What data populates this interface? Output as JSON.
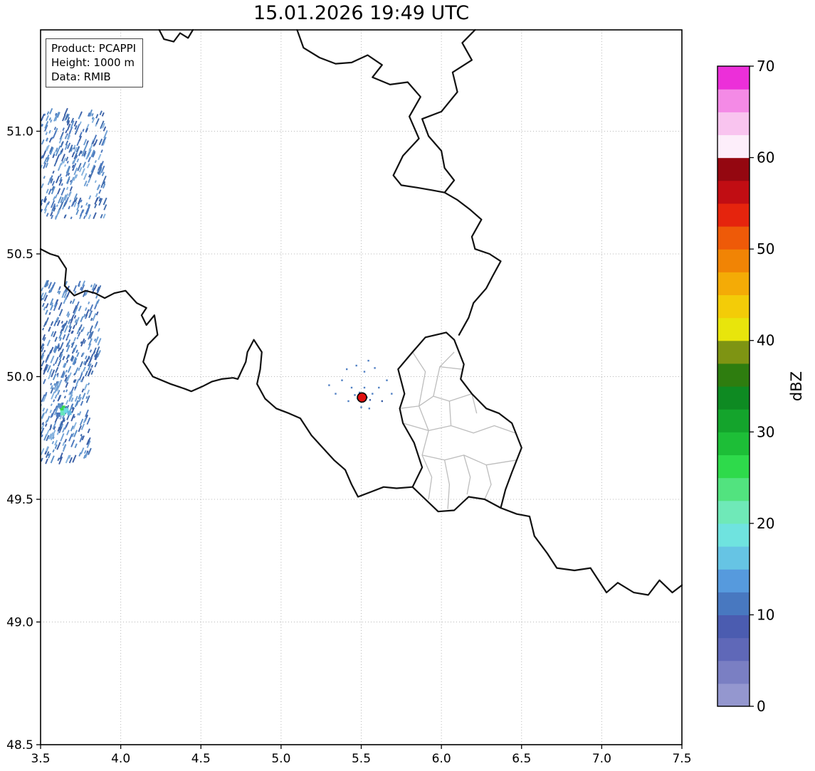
{
  "chart_data": {
    "type": "heatmap",
    "subtype": "weather-radar-map",
    "title": "15.01.2026 19:49 UTC",
    "xlabel": "",
    "ylabel": "",
    "grid": true,
    "grid_style": "dotted",
    "x_range": [
      3.5,
      7.5
    ],
    "y_range": [
      48.5,
      51.413
    ],
    "x_ticks": [
      3.5,
      4.0,
      4.5,
      5.0,
      5.5,
      6.0,
      6.5,
      7.0,
      7.5
    ],
    "x_tick_labels": [
      "3.5",
      "4.0",
      "4.5",
      "5.0",
      "5.5",
      "6.0",
      "6.5",
      "7.0",
      "7.5"
    ],
    "y_ticks": [
      48.5,
      49.0,
      49.5,
      50.0,
      50.5,
      51.0
    ],
    "y_tick_labels": [
      "48.5",
      "49.0",
      "49.5",
      "50.0",
      "50.5",
      "51.0"
    ],
    "annotation_lines": [
      "Product: PCAPPI",
      "Height: 1000 m",
      "Data: RMIB"
    ],
    "colorbar": {
      "label": "dBZ",
      "min": 0,
      "max": 70,
      "ticks": [
        0,
        10,
        20,
        30,
        40,
        50,
        60,
        70
      ],
      "tick_labels": [
        "0",
        "10",
        "20",
        "30",
        "40",
        "50",
        "60",
        "70"
      ],
      "colors_bottom_to_top": [
        "#9497cf",
        "#7a7fc3",
        "#5f68b8",
        "#4b5cb0",
        "#4878c0",
        "#569add",
        "#66c4e4",
        "#6fe3df",
        "#6fe9b8",
        "#52e37f",
        "#2eda4b",
        "#1dbe37",
        "#14a42c",
        "#0e8a22",
        "#2e7d0f",
        "#7e9413",
        "#e8e50c",
        "#f3cc08",
        "#f4ab06",
        "#f18405",
        "#ee5a08",
        "#e5240d",
        "#c10d13",
        "#940710",
        "#fdeefa",
        "#f9c4ef",
        "#f48ae6",
        "#ec2fd9"
      ]
    },
    "radar_site_marker": {
      "lon": 5.505,
      "lat": 49.915,
      "color": "#e01010",
      "edge_color": "#000000"
    },
    "speck_color": "#4f7fc3",
    "echo_clusters": [
      {
        "seed": 11,
        "count": 300,
        "lon_min": 3.5,
        "lon_max": 3.9,
        "lat_min": 50.64,
        "lat_max": 51.07,
        "palette": [
          "#4c78bd",
          "#5b8fc9",
          "#416dae",
          "#6f9fd4",
          "#3b5fa6",
          "#86b3de"
        ]
      },
      {
        "seed": 23,
        "count": 240,
        "lon_min": 3.5,
        "lon_max": 3.86,
        "lat_min": 50.0,
        "lat_max": 50.37,
        "palette": [
          "#4c78bd",
          "#5b8fc9",
          "#416dae",
          "#6f9fd4",
          "#3b5fa6"
        ]
      },
      {
        "seed": 37,
        "count": 190,
        "lon_min": 3.5,
        "lon_max": 3.8,
        "lat_min": 49.64,
        "lat_max": 50.0,
        "palette": [
          "#4c78bd",
          "#5b8fc9",
          "#416dae",
          "#6f9fd4",
          "#3b5fa6",
          "#86b3de"
        ]
      }
    ],
    "echo_cells": [
      {
        "lon": 3.638,
        "lat": 49.872,
        "color": "#35d94e",
        "s": 7
      },
      {
        "lon": 3.638,
        "lat": 49.852,
        "color": "#66e6bc",
        "s": 7
      },
      {
        "lon": 3.66,
        "lat": 49.862,
        "color": "#6fd9e6",
        "s": 7
      },
      {
        "lon": 3.62,
        "lat": 49.882,
        "color": "#5b8fc9",
        "s": 6
      },
      {
        "lon": 3.68,
        "lat": 49.852,
        "color": "#63b7e0",
        "s": 6
      },
      {
        "lon": 3.61,
        "lat": 49.845,
        "color": "#4c78bd",
        "s": 6
      }
    ],
    "echo_specks": [
      {
        "lon": 5.46,
        "lat": 49.925
      },
      {
        "lon": 5.475,
        "lat": 49.91,
        "c": "#7adce2"
      },
      {
        "lon": 5.49,
        "lat": 49.935
      },
      {
        "lon": 5.535,
        "lat": 49.915
      },
      {
        "lon": 5.555,
        "lat": 49.905,
        "c": "#3b5fa6"
      },
      {
        "lon": 5.57,
        "lat": 49.93
      },
      {
        "lon": 5.52,
        "lat": 49.955
      },
      {
        "lon": 5.44,
        "lat": 49.955
      },
      {
        "lon": 5.42,
        "lat": 49.9
      },
      {
        "lon": 5.5,
        "lat": 49.875
      },
      {
        "lon": 5.55,
        "lat": 49.87
      },
      {
        "lon": 5.61,
        "lat": 49.955
      },
      {
        "lon": 5.63,
        "lat": 49.9,
        "c": "#3b5fa6"
      },
      {
        "lon": 5.38,
        "lat": 49.985
      },
      {
        "lon": 5.52,
        "lat": 50.02
      },
      {
        "lon": 5.585,
        "lat": 50.035
      },
      {
        "lon": 5.47,
        "lat": 50.045
      },
      {
        "lon": 5.34,
        "lat": 49.93
      },
      {
        "lon": 5.3,
        "lat": 49.965
      },
      {
        "lon": 5.66,
        "lat": 49.985
      },
      {
        "lon": 5.69,
        "lat": 49.93
      },
      {
        "lon": 5.545,
        "lat": 50.065
      },
      {
        "lon": 5.41,
        "lat": 50.03
      }
    ],
    "borders": {
      "countries": [
        [
          [
            4.24,
            51.413
          ],
          [
            4.27,
            51.375
          ],
          [
            4.33,
            51.365
          ],
          [
            4.37,
            51.4
          ],
          [
            4.42,
            51.38
          ],
          [
            4.45,
            51.413
          ]
        ],
        [
          [
            5.1,
            51.413
          ],
          [
            5.14,
            51.34
          ],
          [
            5.24,
            51.3
          ],
          [
            5.34,
            51.275
          ],
          [
            5.44,
            51.28
          ],
          [
            5.54,
            51.31
          ],
          [
            5.63,
            51.27
          ],
          [
            5.57,
            51.22
          ],
          [
            5.68,
            51.19
          ],
          [
            5.79,
            51.2
          ],
          [
            5.87,
            51.14
          ],
          [
            5.8,
            51.06
          ],
          [
            5.86,
            50.97
          ],
          [
            5.76,
            50.9
          ],
          [
            5.7,
            50.82
          ],
          [
            5.75,
            50.78
          ],
          [
            5.85,
            50.77
          ],
          [
            5.94,
            50.76
          ],
          [
            6.02,
            50.75
          ]
        ],
        [
          [
            6.21,
            51.413
          ],
          [
            6.13,
            51.36
          ],
          [
            6.19,
            51.29
          ],
          [
            6.07,
            51.24
          ],
          [
            6.1,
            51.16
          ],
          [
            6.0,
            51.08
          ],
          [
            5.88,
            51.05
          ],
          [
            5.92,
            50.98
          ],
          [
            6.0,
            50.92
          ],
          [
            6.02,
            50.85
          ],
          [
            6.08,
            50.8
          ],
          [
            6.02,
            50.75
          ],
          [
            6.1,
            50.72
          ],
          [
            6.18,
            50.68
          ],
          [
            6.25,
            50.64
          ],
          [
            6.19,
            50.57
          ],
          [
            6.21,
            50.52
          ],
          [
            6.3,
            50.5
          ],
          [
            6.37,
            50.47
          ],
          [
            6.32,
            50.41
          ],
          [
            6.28,
            50.36
          ],
          [
            6.2,
            50.3
          ],
          [
            6.17,
            50.24
          ],
          [
            6.11,
            50.17
          ]
        ],
        [
          [
            3.5,
            50.52
          ],
          [
            3.56,
            50.5
          ],
          [
            3.61,
            50.49
          ],
          [
            3.66,
            50.44
          ],
          [
            3.65,
            50.37
          ],
          [
            3.71,
            50.33
          ],
          [
            3.78,
            50.35
          ],
          [
            3.84,
            50.34
          ],
          [
            3.9,
            50.32
          ],
          [
            3.96,
            50.34
          ],
          [
            4.03,
            50.35
          ],
          [
            4.1,
            50.3
          ],
          [
            4.16,
            50.28
          ],
          [
            4.13,
            50.25
          ],
          [
            4.16,
            50.21
          ],
          [
            4.21,
            50.25
          ],
          [
            4.23,
            50.17
          ],
          [
            4.17,
            50.13
          ],
          [
            4.14,
            50.06
          ],
          [
            4.2,
            50.0
          ],
          [
            4.31,
            49.97
          ],
          [
            4.4,
            49.95
          ],
          [
            4.44,
            49.94
          ],
          [
            4.51,
            49.96
          ],
          [
            4.57,
            49.98
          ],
          [
            4.63,
            49.99
          ],
          [
            4.7,
            49.995
          ],
          [
            4.73,
            49.99
          ],
          [
            4.78,
            50.06
          ],
          [
            4.79,
            50.1
          ],
          [
            4.83,
            50.15
          ],
          [
            4.88,
            50.1
          ],
          [
            4.87,
            50.03
          ],
          [
            4.85,
            49.97
          ],
          [
            4.9,
            49.91
          ],
          [
            4.97,
            49.87
          ],
          [
            5.05,
            49.85
          ],
          [
            5.12,
            49.83
          ],
          [
            5.19,
            49.76
          ],
          [
            5.26,
            49.71
          ],
          [
            5.33,
            49.66
          ],
          [
            5.4,
            49.62
          ],
          [
            5.44,
            49.56
          ],
          [
            5.48,
            49.51
          ],
          [
            5.56,
            49.53
          ],
          [
            5.64,
            49.55
          ],
          [
            5.72,
            49.545
          ],
          [
            5.82,
            49.55
          ]
        ],
        [
          [
            5.82,
            49.55
          ],
          [
            5.88,
            49.63
          ],
          [
            5.83,
            49.73
          ],
          [
            5.76,
            49.81
          ],
          [
            5.74,
            49.87
          ],
          [
            5.77,
            49.93
          ],
          [
            5.73,
            50.03
          ],
          [
            5.82,
            50.1
          ],
          [
            5.9,
            50.16
          ],
          [
            6.03,
            50.18
          ],
          [
            6.08,
            50.15
          ],
          [
            6.14,
            50.05
          ],
          [
            6.12,
            49.99
          ],
          [
            6.19,
            49.93
          ],
          [
            6.28,
            49.87
          ],
          [
            6.36,
            49.85
          ],
          [
            6.44,
            49.81
          ],
          [
            6.5,
            49.71
          ],
          [
            6.44,
            49.61
          ],
          [
            6.4,
            49.54
          ],
          [
            6.37,
            49.465
          ],
          [
            6.27,
            49.5
          ],
          [
            6.17,
            49.51
          ],
          [
            6.08,
            49.455
          ],
          [
            5.98,
            49.45
          ],
          [
            5.9,
            49.5
          ],
          [
            5.82,
            49.55
          ]
        ],
        [
          [
            6.37,
            49.465
          ],
          [
            6.47,
            49.44
          ],
          [
            6.55,
            49.43
          ],
          [
            6.58,
            49.35
          ],
          [
            6.66,
            49.28
          ],
          [
            6.72,
            49.22
          ],
          [
            6.83,
            49.21
          ],
          [
            6.93,
            49.22
          ],
          [
            7.03,
            49.12
          ],
          [
            7.1,
            49.16
          ],
          [
            7.2,
            49.12
          ],
          [
            7.29,
            49.11
          ],
          [
            7.36,
            49.17
          ],
          [
            7.44,
            49.12
          ],
          [
            7.5,
            49.15
          ]
        ]
      ],
      "luxembourg_districts": [
        [
          [
            5.74,
            49.87
          ],
          [
            5.86,
            49.88
          ],
          [
            5.95,
            49.92
          ],
          [
            6.05,
            49.9
          ],
          [
            6.19,
            49.93
          ]
        ],
        [
          [
            5.82,
            50.1
          ],
          [
            5.9,
            50.02
          ],
          [
            5.86,
            49.88
          ]
        ],
        [
          [
            5.95,
            49.92
          ],
          [
            5.99,
            50.04
          ],
          [
            6.13,
            50.03
          ]
        ],
        [
          [
            5.86,
            49.88
          ],
          [
            5.92,
            49.78
          ],
          [
            5.88,
            49.68
          ],
          [
            5.94,
            49.59
          ],
          [
            5.92,
            49.5
          ]
        ],
        [
          [
            5.76,
            49.81
          ],
          [
            5.92,
            49.78
          ],
          [
            6.06,
            49.8
          ],
          [
            6.2,
            49.77
          ],
          [
            6.33,
            49.8
          ],
          [
            6.46,
            49.77
          ]
        ],
        [
          [
            6.06,
            49.8
          ],
          [
            6.05,
            49.9
          ]
        ],
        [
          [
            5.88,
            49.68
          ],
          [
            6.02,
            49.66
          ],
          [
            6.14,
            49.68
          ],
          [
            6.28,
            49.64
          ],
          [
            6.47,
            49.66
          ]
        ],
        [
          [
            6.02,
            49.66
          ],
          [
            6.05,
            49.56
          ],
          [
            6.04,
            49.46
          ]
        ],
        [
          [
            6.14,
            49.68
          ],
          [
            6.18,
            49.59
          ],
          [
            6.16,
            49.52
          ]
        ],
        [
          [
            6.28,
            49.64
          ],
          [
            6.31,
            49.56
          ],
          [
            6.27,
            49.5
          ]
        ],
        [
          [
            6.19,
            49.93
          ],
          [
            6.22,
            49.85
          ]
        ],
        [
          [
            5.99,
            50.04
          ],
          [
            6.08,
            50.1
          ]
        ]
      ]
    }
  }
}
